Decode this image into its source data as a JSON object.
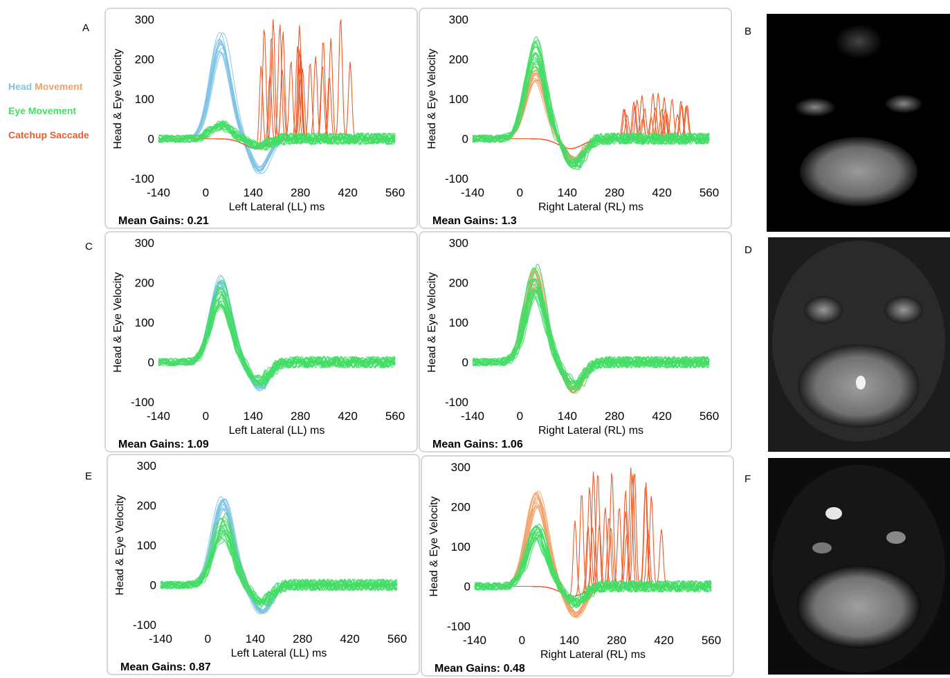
{
  "legend": {
    "head": "Head",
    "movement": "Movement",
    "eye_movement": "Eye Movement",
    "catchup_saccade": "Catchup Saccade"
  },
  "colors": {
    "head_left": "#7ec3e6",
    "head_right": "#f4a066",
    "eye": "#44dd66",
    "saccade": "#f05a28",
    "border": "#d6d6d6"
  },
  "panel_letters": {
    "a": "A",
    "b": "B",
    "c": "C",
    "d": "D",
    "e": "E",
    "f": "F"
  },
  "mri_images": [
    {
      "panel": "B",
      "content": "axial DWI MRI of posterior fossa"
    },
    {
      "panel": "D",
      "content": "axial DWI MRI with small bright lesion near midline cerebellum"
    },
    {
      "panel": "F",
      "content": "axial DWI MRI of posterior fossa"
    }
  ],
  "chart_data": [
    {
      "panel": "A",
      "type": "line",
      "ylabel": "Head & Eye Velocity",
      "xlabel": "Left Lateral (LL) ms",
      "xticks": [
        -140,
        0,
        140,
        280,
        420,
        560
      ],
      "yticks": [
        300,
        200,
        100,
        0,
        -100
      ],
      "xlim": [
        -140,
        560
      ],
      "ylim": [
        -100,
        300
      ],
      "side": "left",
      "head_peak": 270,
      "eye_peak": 40,
      "gain_label": "Mean Gains: 0.21",
      "saccade_window": [
        150,
        440
      ],
      "saccade_peak": 300,
      "series": [
        {
          "name": "Head Movement"
        },
        {
          "name": "Eye Movement"
        },
        {
          "name": "Catchup Saccade"
        }
      ]
    },
    {
      "panel": "A2",
      "type": "line",
      "ylabel": "Head & Eye Velocity",
      "xlabel": "Right Lateral (RL) ms",
      "xticks": [
        -140,
        0,
        140,
        280,
        420,
        560
      ],
      "yticks": [
        300,
        200,
        100,
        0,
        -100
      ],
      "xlim": [
        -140,
        560
      ],
      "ylim": [
        -100,
        300
      ],
      "side": "right",
      "head_peak": 185,
      "eye_peak": 240,
      "gain_label": "Mean Gains: 1.3",
      "saccade_window": [
        300,
        500
      ],
      "saccade_peak": 110,
      "series": [
        {
          "name": "Head Movement"
        },
        {
          "name": "Eye Movement"
        },
        {
          "name": "Catchup Saccade"
        }
      ]
    },
    {
      "panel": "C",
      "type": "line",
      "ylabel": "Head & Eye Velocity",
      "xlabel": "Left Lateral (LL) ms",
      "xticks": [
        -140,
        0,
        140,
        280,
        420,
        560
      ],
      "yticks": [
        300,
        200,
        100,
        0,
        -100
      ],
      "xlim": [
        -140,
        560
      ],
      "ylim": [
        -100,
        300
      ],
      "side": "left",
      "head_peak": 225,
      "eye_peak": 200,
      "gain_label": "Mean Gains: 1.09",
      "saccade_window": [],
      "saccade_peak": 0,
      "series": [
        {
          "name": "Head Movement"
        },
        {
          "name": "Eye Movement"
        }
      ]
    },
    {
      "panel": "C2",
      "type": "line",
      "ylabel": "Head & Eye Velocity",
      "xlabel": "Right Lateral (RL) ms",
      "xticks": [
        -140,
        0,
        140,
        280,
        420,
        560
      ],
      "yticks": [
        300,
        200,
        100,
        0,
        -100
      ],
      "xlim": [
        -140,
        560
      ],
      "ylim": [
        -100,
        300
      ],
      "side": "right",
      "head_peak": 240,
      "eye_peak": 230,
      "gain_label": "Mean Gains: 1.06",
      "saccade_window": [],
      "saccade_peak": 0,
      "series": [
        {
          "name": "Head Movement"
        },
        {
          "name": "Eye Movement"
        }
      ]
    },
    {
      "panel": "E",
      "type": "line",
      "ylabel": "Head & Eye Velocity",
      "xlabel": "Left Lateral (LL) ms",
      "xticks": [
        -140,
        0,
        140,
        280,
        420,
        560
      ],
      "yticks": [
        300,
        200,
        100,
        0,
        -100
      ],
      "xlim": [
        -140,
        560
      ],
      "ylim": [
        -100,
        300
      ],
      "side": "left",
      "head_peak": 225,
      "eye_peak": 165,
      "gain_label": "Mean Gains: 0.87",
      "saccade_window": [],
      "saccade_peak": 0,
      "series": [
        {
          "name": "Head Movement"
        },
        {
          "name": "Eye Movement"
        }
      ]
    },
    {
      "panel": "E2",
      "type": "line",
      "ylabel": "Head & Eye Velocity",
      "xlabel": "Right Lateral (RL) ms",
      "xticks": [
        -140,
        0,
        140,
        280,
        420,
        560
      ],
      "yticks": [
        300,
        200,
        100,
        0,
        -100
      ],
      "xlim": [
        -140,
        560
      ],
      "ylim": [
        -100,
        300
      ],
      "side": "right",
      "head_peak": 250,
      "eye_peak": 150,
      "gain_label": "Mean Gains: 0.48",
      "saccade_window": [
        150,
        420
      ],
      "saccade_peak": 290,
      "series": [
        {
          "name": "Head Movement"
        },
        {
          "name": "Eye Movement"
        },
        {
          "name": "Catchup Saccade"
        }
      ]
    }
  ]
}
